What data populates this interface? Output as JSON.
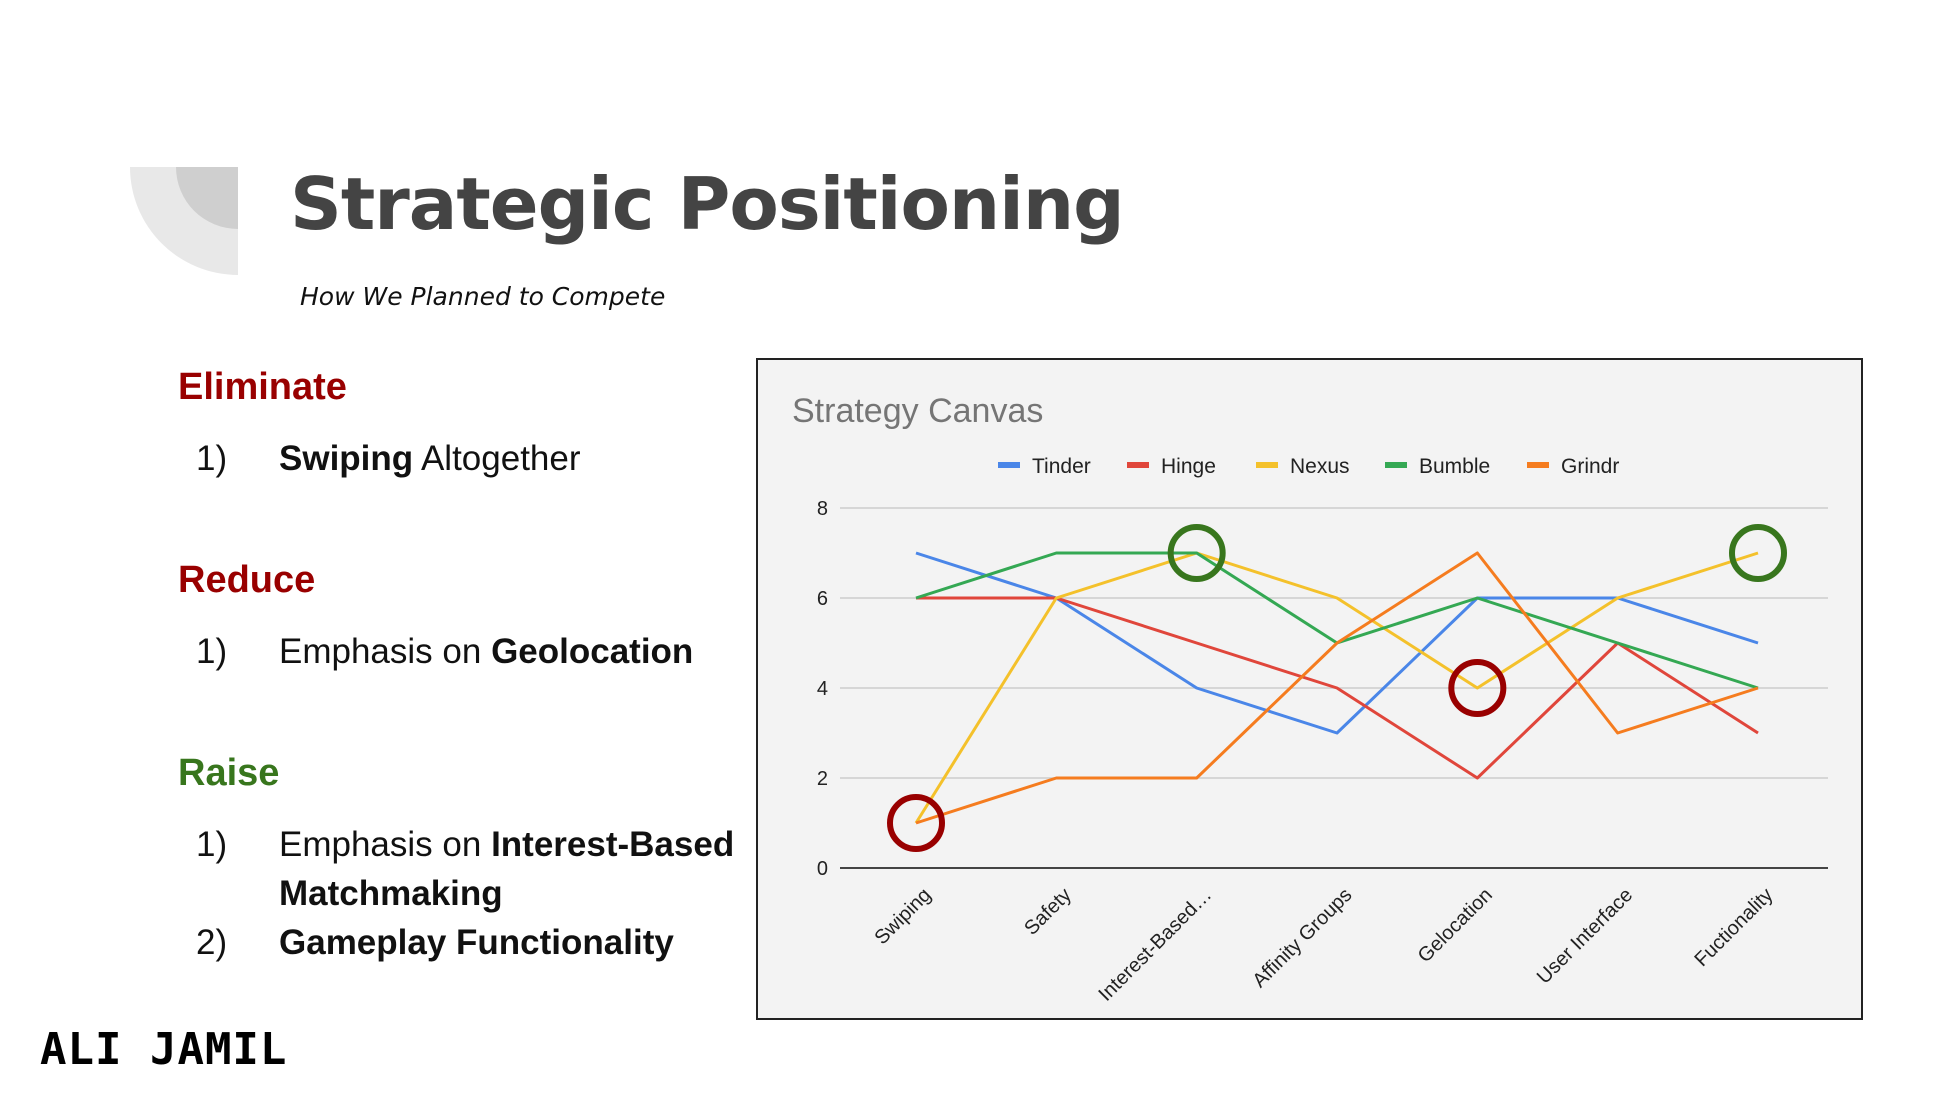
{
  "slide": {
    "title": "Strategic Positioning",
    "subtitle": "How We Planned to Compete",
    "footer": "ALI JAMIL",
    "sections": [
      {
        "heading": "Eliminate",
        "color": "#990000",
        "items": [
          {
            "num": "1)",
            "parts": [
              {
                "text": "Swiping",
                "bold": true
              },
              {
                "text": " Altogether",
                "bold": false
              }
            ]
          }
        ]
      },
      {
        "heading": "Reduce",
        "color": "#990000",
        "items": [
          {
            "num": "1)",
            "parts": [
              {
                "text": "Emphasis on ",
                "bold": false
              },
              {
                "text": "Geolocation",
                "bold": true
              }
            ]
          }
        ]
      },
      {
        "heading": "Raise",
        "color": "#38761d",
        "items": [
          {
            "num": "1)",
            "parts": [
              {
                "text": "Emphasis on ",
                "bold": false
              },
              {
                "text": "Interest-Based Matchmaking",
                "bold": true
              }
            ]
          },
          {
            "num": "2)",
            "parts": [
              {
                "text": "Gameplay Functionality",
                "bold": true
              }
            ]
          }
        ]
      }
    ]
  },
  "chart_data": {
    "type": "line",
    "title": "Strategy Canvas",
    "xlabel": "",
    "ylabel": "",
    "categories": [
      "Swiping",
      "Safety",
      "Interest-Based…",
      "Affinity Groups",
      "Gelocation",
      "User Interface",
      "Fuctionality"
    ],
    "ylim": [
      0,
      8
    ],
    "yticks": [
      "0",
      "2",
      "4",
      "6",
      "8"
    ],
    "grid": true,
    "legend": "top",
    "series": [
      {
        "name": "Tinder",
        "color": "#4a86e8",
        "values": [
          7,
          6,
          4,
          3,
          6,
          6,
          5
        ]
      },
      {
        "name": "Hinge",
        "color": "#e0463b",
        "values": [
          6,
          6,
          5,
          4,
          2,
          5,
          3
        ]
      },
      {
        "name": "Nexus",
        "color": "#f4c12b",
        "values": [
          1,
          6,
          7,
          6,
          4,
          6,
          7
        ]
      },
      {
        "name": "Bumble",
        "color": "#34a853",
        "values": [
          6,
          7,
          7,
          5,
          6,
          5,
          4
        ]
      },
      {
        "name": "Grindr",
        "color": "#f57c1f",
        "values": [
          1,
          2,
          2,
          5,
          7,
          3,
          4
        ]
      }
    ],
    "annotations": [
      {
        "type": "circle",
        "category": "Swiping",
        "value": 1,
        "color": "#990000"
      },
      {
        "type": "circle",
        "category": "Interest-Based…",
        "value": 7,
        "color": "#38761d"
      },
      {
        "type": "circle",
        "category": "Gelocation",
        "value": 4,
        "color": "#990000"
      },
      {
        "type": "circle",
        "category": "Fuctionality",
        "value": 7,
        "color": "#38761d"
      }
    ]
  }
}
